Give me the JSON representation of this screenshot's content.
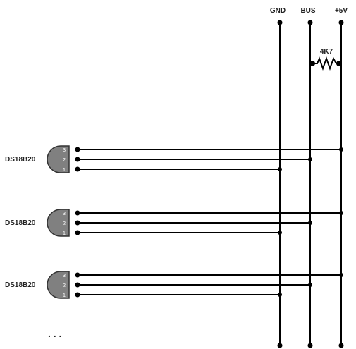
{
  "rails": [
    {
      "id": "gnd",
      "label": "GND"
    },
    {
      "id": "bus",
      "label": "BUS"
    },
    {
      "id": "vcc",
      "label": "+5V"
    }
  ],
  "resistor": {
    "label": "4K7",
    "from": "bus",
    "to": "vcc"
  },
  "sensors": [
    {
      "label": "DS18B20",
      "pins": [
        {
          "number": "3",
          "rail": "vcc"
        },
        {
          "number": "2",
          "rail": "bus"
        },
        {
          "number": "1",
          "rail": "gnd"
        }
      ]
    },
    {
      "label": "DS18B20",
      "pins": [
        {
          "number": "3",
          "rail": "vcc"
        },
        {
          "number": "2",
          "rail": "bus"
        },
        {
          "number": "1",
          "rail": "gnd"
        }
      ]
    },
    {
      "label": "DS18B20",
      "pins": [
        {
          "number": "3",
          "rail": "vcc"
        },
        {
          "number": "2",
          "rail": "bus"
        },
        {
          "number": "1",
          "rail": "gnd"
        }
      ]
    }
  ],
  "ellipsis": ". . .",
  "colors": {
    "wire": "#000000",
    "sensor_body": "#808080",
    "label": "#222222"
  }
}
